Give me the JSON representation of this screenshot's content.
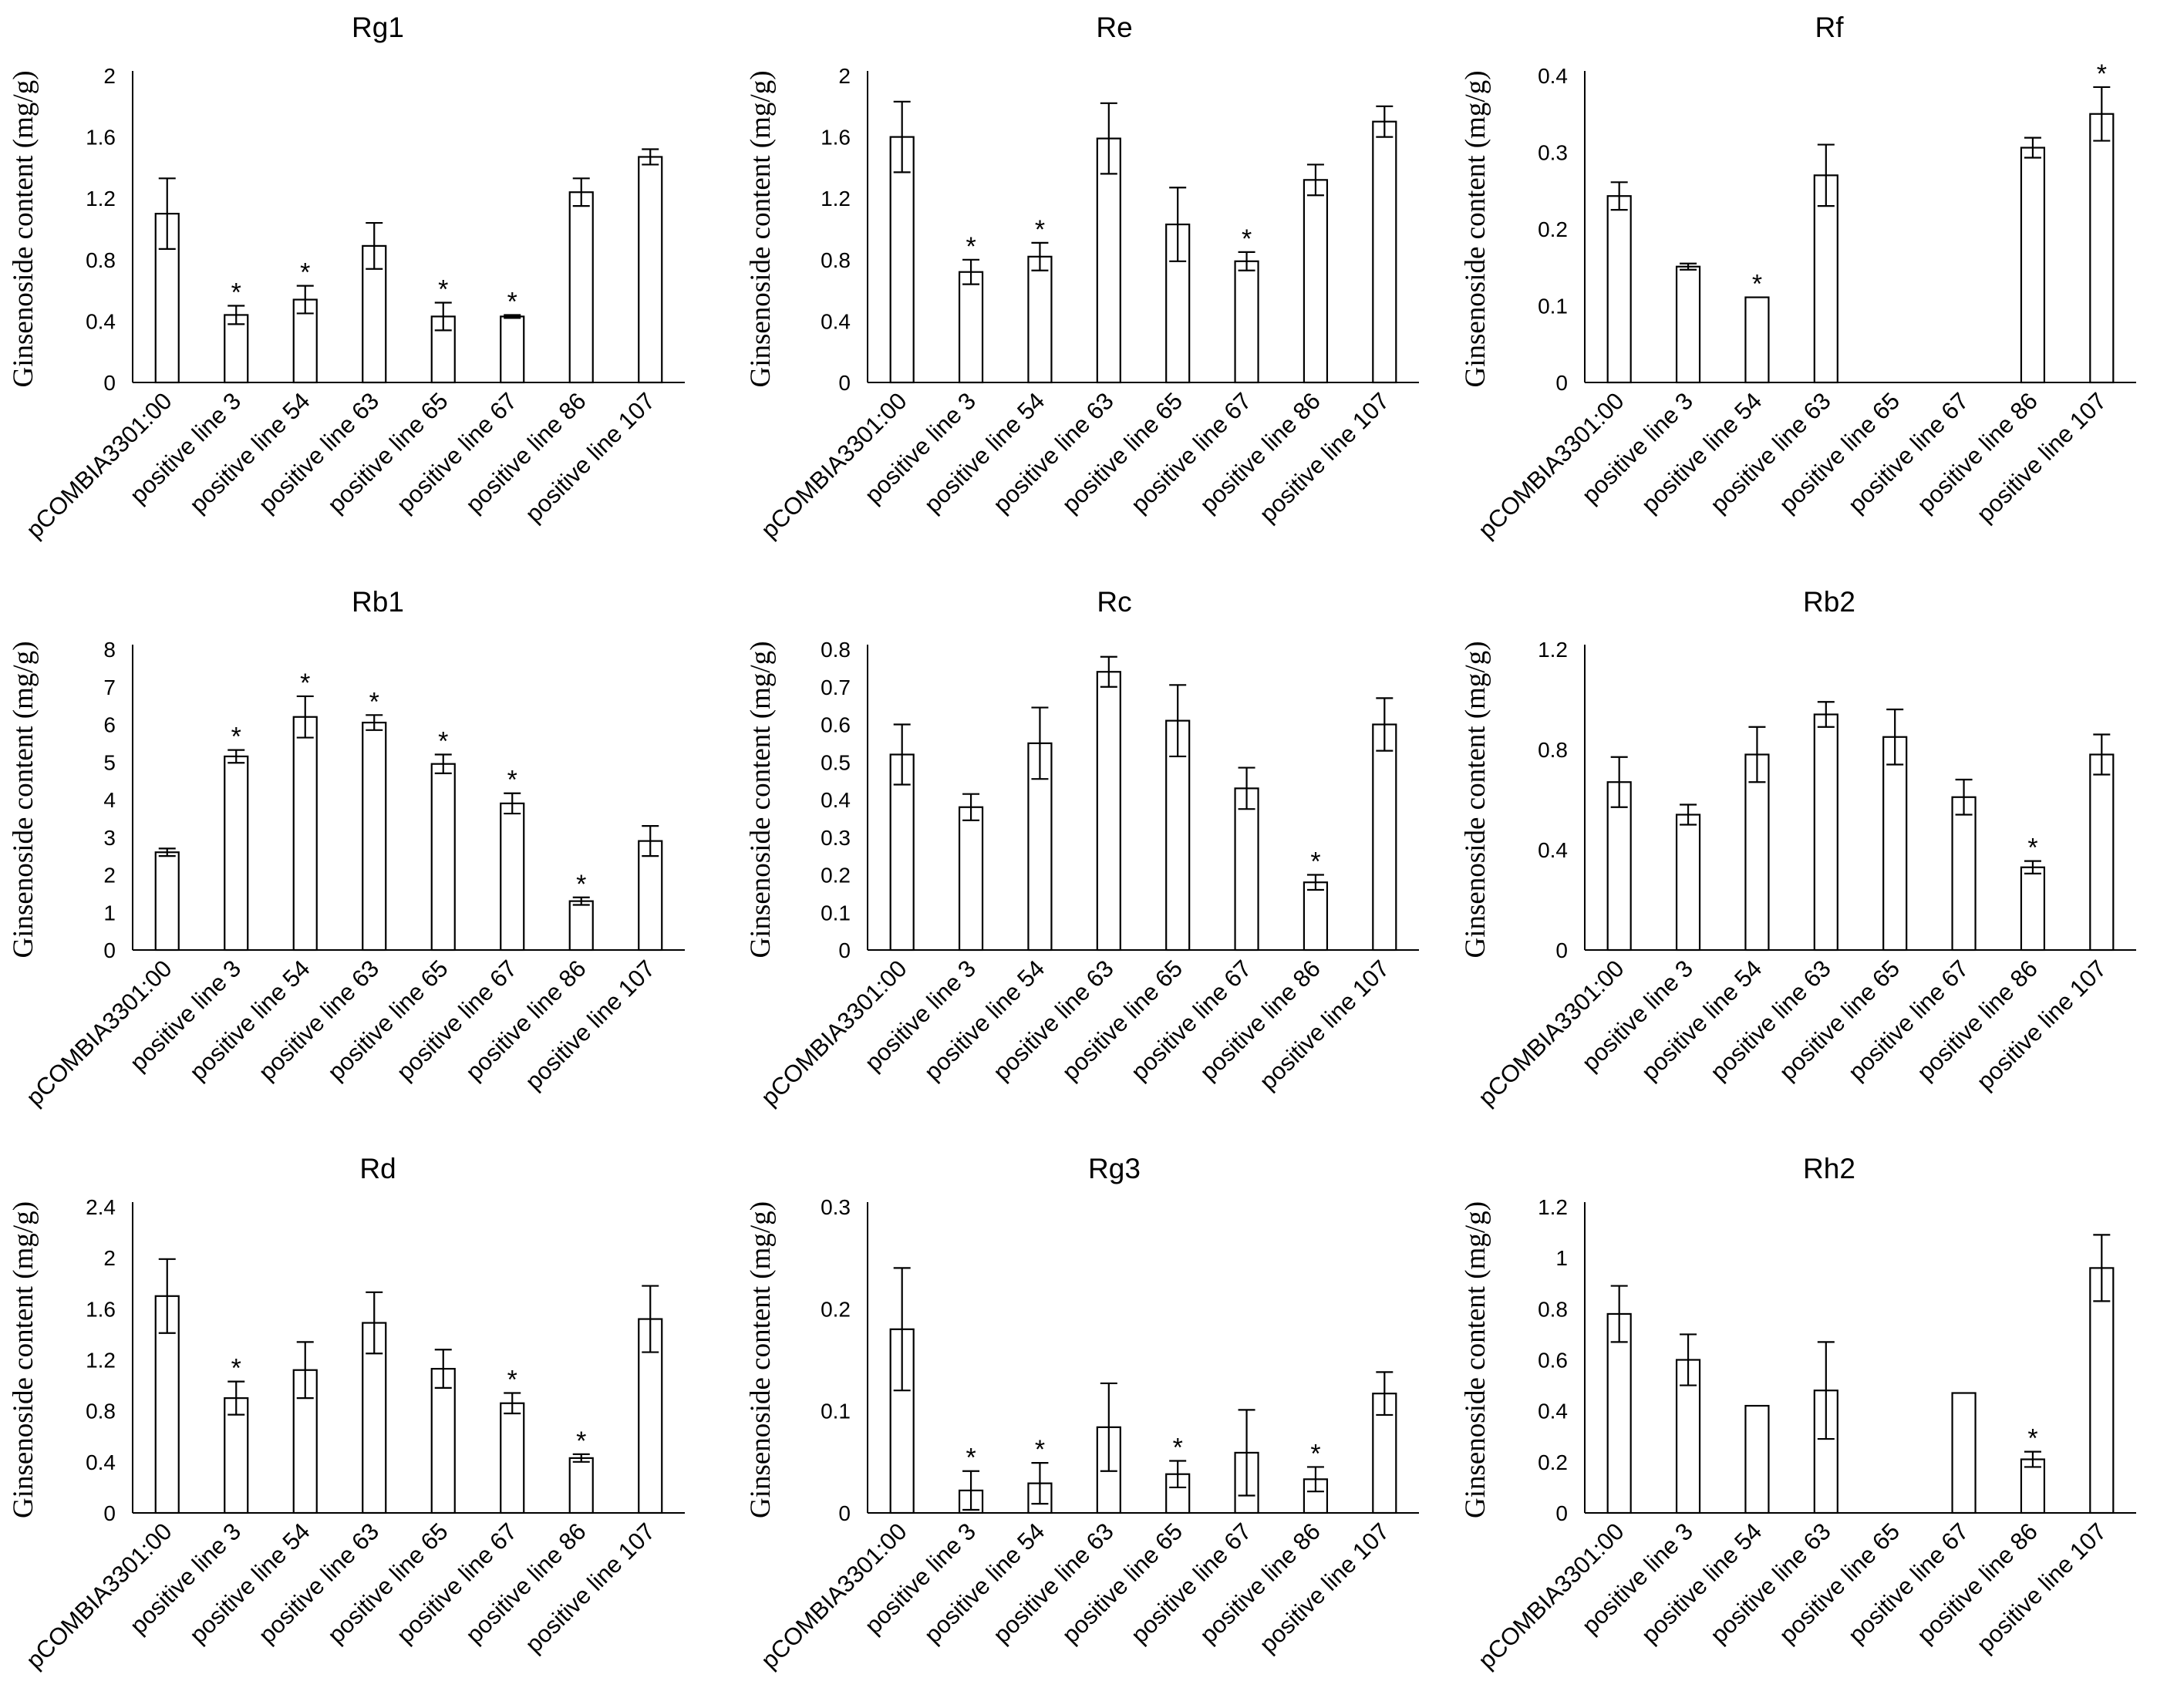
{
  "figure": {
    "ylabel": "Ginsenoside content (mg/g)"
  },
  "chart_data": [
    {
      "type": "bar",
      "title": "Rg1",
      "ylabel": "Ginsenoside content (mg/g)",
      "ylim": [
        0,
        2
      ],
      "yticks": [
        "0",
        "0.4",
        "0.8",
        "1.2",
        "1.6",
        "2"
      ],
      "categories": [
        "pCOMBIA3301:00",
        "positive line 3",
        "positive line 54",
        "positive line 63",
        "positive line 65",
        "positive line 67",
        "positive line 86",
        "positive line 107"
      ],
      "values": [
        1.1,
        0.44,
        0.54,
        0.89,
        0.43,
        0.43,
        1.24,
        1.47
      ],
      "errors": [
        0.23,
        0.06,
        0.09,
        0.15,
        0.09,
        0.01,
        0.09,
        0.05
      ],
      "significant": [
        false,
        true,
        true,
        false,
        true,
        true,
        false,
        false
      ]
    },
    {
      "type": "bar",
      "title": "Re",
      "ylabel": "Ginsenoside content (mg/g)",
      "ylim": [
        0,
        2
      ],
      "yticks": [
        "0",
        "0.4",
        "0.8",
        "1.2",
        "1.6",
        "2"
      ],
      "categories": [
        "pCOMBIA3301:00",
        "positive line 3",
        "positive line 54",
        "positive line 63",
        "positive line 65",
        "positive line 67",
        "positive line 86",
        "positive line 107"
      ],
      "values": [
        1.6,
        0.72,
        0.82,
        1.59,
        1.03,
        0.79,
        1.32,
        1.7
      ],
      "errors": [
        0.23,
        0.08,
        0.09,
        0.23,
        0.24,
        0.06,
        0.1,
        0.1
      ],
      "significant": [
        false,
        true,
        true,
        false,
        false,
        true,
        false,
        false
      ]
    },
    {
      "type": "bar",
      "title": "Rf",
      "ylabel": "Ginsenoside content (mg/g)",
      "ylim": [
        0,
        0.4
      ],
      "yticks": [
        "0",
        "0.1",
        "0.2",
        "0.3",
        "0.4"
      ],
      "categories": [
        "pCOMBIA3301:00",
        "positive line 3",
        "positive line 54",
        "positive line 63",
        "positive line 65",
        "positive line 67",
        "positive line 86",
        "positive line 107"
      ],
      "values": [
        0.243,
        0.151,
        0.111,
        0.27,
        0,
        0,
        0.306,
        0.35
      ],
      "errors": [
        0.018,
        0.004,
        0,
        0.04,
        0,
        0,
        0.013,
        0.035
      ],
      "significant": [
        false,
        false,
        true,
        false,
        false,
        false,
        false,
        true
      ]
    },
    {
      "type": "bar",
      "title": "Rb1",
      "ylabel": "Ginsenoside content (mg/g)",
      "ylim": [
        0,
        8
      ],
      "yticks": [
        "0",
        "1",
        "2",
        "3",
        "4",
        "5",
        "6",
        "7",
        "8"
      ],
      "categories": [
        "pCOMBIA3301:00",
        "positive line 3",
        "positive line 54",
        "positive line 63",
        "positive line 65",
        "positive line 67",
        "positive line 86",
        "positive line 107"
      ],
      "values": [
        2.6,
        5.15,
        6.2,
        6.05,
        4.95,
        3.9,
        1.3,
        2.9
      ],
      "errors": [
        0.1,
        0.17,
        0.55,
        0.2,
        0.25,
        0.27,
        0.1,
        0.4
      ],
      "significant": [
        false,
        true,
        true,
        true,
        true,
        true,
        true,
        false
      ]
    },
    {
      "type": "bar",
      "title": "Rc",
      "ylabel": "Ginsenoside content (mg/g)",
      "ylim": [
        0,
        0.8
      ],
      "yticks": [
        "0",
        "0.1",
        "0.2",
        "0.3",
        "0.4",
        "0.5",
        "0.6",
        "0.7",
        "0.8"
      ],
      "categories": [
        "pCOMBIA3301:00",
        "positive line 3",
        "positive line 54",
        "positive line 63",
        "positive line 65",
        "positive line 67",
        "positive line 86",
        "positive line 107"
      ],
      "values": [
        0.52,
        0.38,
        0.55,
        0.74,
        0.61,
        0.43,
        0.18,
        0.6
      ],
      "errors": [
        0.08,
        0.035,
        0.095,
        0.04,
        0.095,
        0.055,
        0.02,
        0.07
      ],
      "significant": [
        false,
        false,
        false,
        false,
        false,
        false,
        true,
        false
      ]
    },
    {
      "type": "bar",
      "title": "Rb2",
      "ylabel": "Ginsenoside content (mg/g)",
      "ylim": [
        0,
        1.2
      ],
      "yticks": [
        "0",
        "0.4",
        "0.8",
        "1.2"
      ],
      "categories": [
        "pCOMBIA3301:00",
        "positive line 3",
        "positive line 54",
        "positive line 63",
        "positive line 65",
        "positive line 67",
        "positive line 86",
        "positive line 107"
      ],
      "values": [
        0.67,
        0.54,
        0.78,
        0.94,
        0.85,
        0.61,
        0.33,
        0.78
      ],
      "errors": [
        0.1,
        0.04,
        0.11,
        0.05,
        0.11,
        0.07,
        0.025,
        0.08
      ],
      "significant": [
        false,
        false,
        false,
        false,
        false,
        false,
        true,
        false
      ]
    },
    {
      "type": "bar",
      "title": "Rd",
      "ylabel": "Ginsenoside content (mg/g)",
      "ylim": [
        0,
        2.4
      ],
      "yticks": [
        "0",
        "0.4",
        "0.8",
        "1.2",
        "1.6",
        "2",
        "2.4"
      ],
      "categories": [
        "pCOMBIA3301:00",
        "positive line 3",
        "positive line 54",
        "positive line 63",
        "positive line 65",
        "positive line 67",
        "positive line 86",
        "positive line 107"
      ],
      "values": [
        1.7,
        0.9,
        1.12,
        1.49,
        1.13,
        0.86,
        0.43,
        1.52
      ],
      "errors": [
        0.29,
        0.13,
        0.22,
        0.24,
        0.15,
        0.08,
        0.03,
        0.26
      ],
      "significant": [
        false,
        true,
        false,
        false,
        false,
        true,
        true,
        false
      ]
    },
    {
      "type": "bar",
      "title": "Rg3",
      "ylabel": "Ginsenoside content (mg/g)",
      "ylim": [
        0,
        0.3
      ],
      "yticks": [
        "0",
        "0.1",
        "0.2",
        "0.3"
      ],
      "categories": [
        "pCOMBIA3301:00",
        "positive line 3",
        "positive line 54",
        "positive line 63",
        "positive line 65",
        "positive line 67",
        "positive line 86",
        "positive line 107"
      ],
      "values": [
        0.18,
        0.022,
        0.029,
        0.084,
        0.038,
        0.059,
        0.033,
        0.117
      ],
      "errors": [
        0.06,
        0.019,
        0.02,
        0.043,
        0.013,
        0.042,
        0.012,
        0.021
      ],
      "significant": [
        false,
        true,
        true,
        false,
        true,
        false,
        true,
        false
      ]
    },
    {
      "type": "bar",
      "title": "Rh2",
      "ylabel": "Ginsenoside content (mg/g)",
      "ylim": [
        0,
        1.2
      ],
      "yticks": [
        "0",
        "0.2",
        "0.4",
        "0.6",
        "0.8",
        "1",
        "1.2"
      ],
      "categories": [
        "pCOMBIA3301:00",
        "positive line 3",
        "positive line 54",
        "positive line 63",
        "positive line 65",
        "positive line 67",
        "positive line 86",
        "positive line 107"
      ],
      "values": [
        0.78,
        0.6,
        0.42,
        0.48,
        0,
        0.47,
        0.21,
        0.96
      ],
      "errors": [
        0.11,
        0.1,
        0,
        0.19,
        0,
        0,
        0.03,
        0.13
      ],
      "significant": [
        false,
        false,
        false,
        false,
        false,
        false,
        true,
        false
      ]
    }
  ]
}
